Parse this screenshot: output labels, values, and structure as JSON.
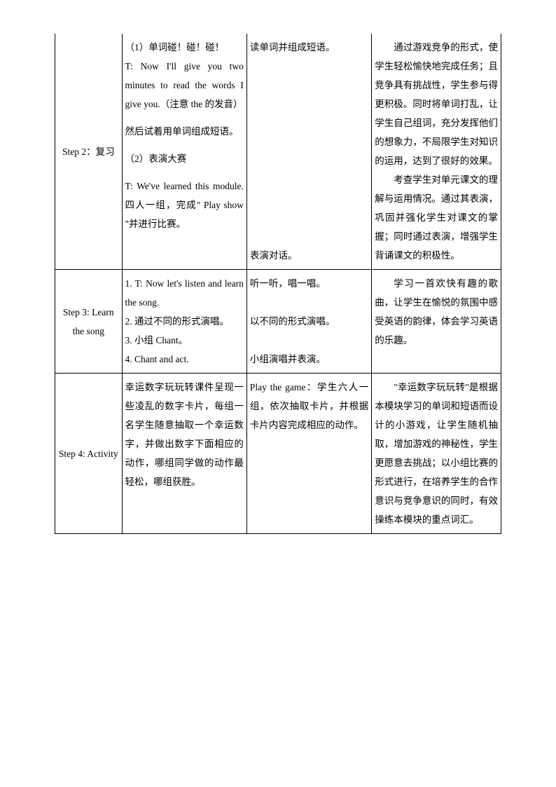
{
  "table": {
    "rows": [
      {
        "col1": "Step 2：复习",
        "col2_parts": [
          "（1）单词碰！碰！碰！",
          "T: Now I'll give you two minutes to read the words I give you.（注意 the 的发音）",
          "然后试着用单词组成短语。",
          "（2）表演大赛",
          "T: We've learned this module. 四人一组，完成\" Play show \"并进行比赛。"
        ],
        "col3_parts": [
          "读单词并组成短语。",
          "表演对话。"
        ],
        "col3_spacing": [
          0,
          10
        ],
        "col4_parts": [
          "通过游戏竞争的形式，使学生轻松愉快地完成任务；且竞争具有挑战性，学生参与得更积极。同时将单词打乱，让学生自己组词，充分发挥他们的想象力，不局限学生对知识的运用，达到了很好的效果。",
          "考查学生对单元课文的理解与运用情况。通过其表演，巩固并强化学生对课文的掌握；同时通过表演，增强学生背诵课文的积极性。"
        ]
      },
      {
        "col1": "Step 3: Learn the song",
        "col2_parts": [
          "1. T: Now let's listen and learn the song.",
          "2. 通过不同的形式演唱。",
          "3. 小组 Chant。",
          "4. Chant and act."
        ],
        "col3_parts": [
          "听一听，唱一唱。",
          "以不同的形式演唱。",
          "小组演唱并表演。"
        ],
        "col3_spacing": [
          0,
          1,
          1
        ],
        "col4_parts": [
          "学习一首欢快有趣的歌曲，让学生在愉悦的氛围中感受英语的韵律，体会学习英语的乐趣。"
        ]
      },
      {
        "col1": "Step 4: Activity",
        "col2_parts": [
          "幸运数字玩玩转课件呈现一些凌乱的数字卡片，每组一名学生随意抽取一个幸运数字，并做出数字下面相应的动作，哪组同学做的动作最轻松，哪组获胜。"
        ],
        "col3_parts": [
          "Play the game：学生六人一组，依次抽取卡片，并根据卡片内容完成相应的动作。"
        ],
        "col3_spacing": [
          0
        ],
        "col4_parts": [
          "\"幸运数字玩玩转\"是根据本模块学习的单词和短语而设计的小游戏，让学生随机抽取，增加游戏的神秘性，学生更愿意去挑战；以小组比赛的形式进行，在培养学生的合作意识与竞争意识的同时，有效操练本模块的重点词汇。"
        ]
      }
    ]
  }
}
